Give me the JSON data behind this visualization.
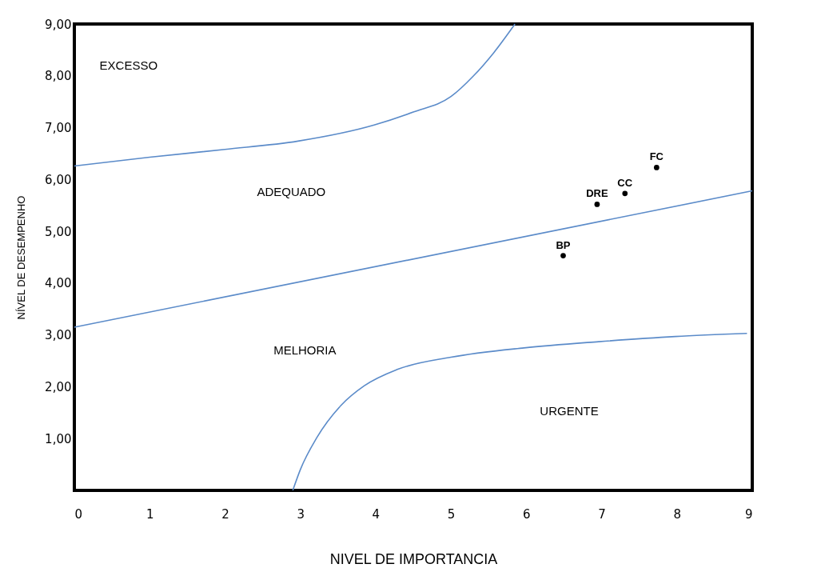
{
  "chart_data": {
    "type": "line",
    "xlabel": "NIVEL DE IMPORTANCIA",
    "ylabel": "NÍVEL DE DESEMPENHO",
    "xlim": [
      0,
      9
    ],
    "xticks": [
      0,
      1,
      2,
      3,
      4,
      5,
      6,
      7,
      8,
      9
    ],
    "ylim": [
      0,
      9
    ],
    "yticks": [
      {
        "value": 1,
        "label": "1,00"
      },
      {
        "value": 2,
        "label": "2,00"
      },
      {
        "value": 3,
        "label": "3,00"
      },
      {
        "value": 4,
        "label": "4,00"
      },
      {
        "value": 5,
        "label": "5,00"
      },
      {
        "value": 6,
        "label": "6,00"
      },
      {
        "value": 7,
        "label": "7,00"
      },
      {
        "value": 8,
        "label": "8,00"
      },
      {
        "value": 9,
        "label": "9,00"
      }
    ],
    "grid": false,
    "legend": false,
    "marker": "none",
    "line_style": "solid",
    "series": [
      {
        "color": "#5b8bc9",
        "x": [
          0,
          1,
          2,
          2.97,
          3.98,
          4.5,
          5,
          5.3,
          5.57,
          5.85
        ],
        "values": [
          6.26,
          6.43,
          6.58,
          6.74,
          7.05,
          7.3,
          7.6,
          8.0,
          8.45,
          9
        ]
      },
      {
        "color": "#5b8bc9",
        "x": [
          0,
          9
        ],
        "values": [
          3.15,
          5.78
        ]
      },
      {
        "color": "#5b8bc9",
        "x": [
          2.9,
          3,
          3.22,
          3.54,
          3.85,
          4.28,
          5,
          5.97,
          6.96,
          7.98,
          8.93
        ],
        "values": [
          0,
          0.4,
          1.02,
          1.64,
          2.02,
          2.33,
          2.57,
          2.75,
          2.87,
          2.97,
          3.03
        ]
      },
      {
        "type": "scatter",
        "marker": "circle",
        "color": "#000000",
        "x": [
          6.49,
          6.94,
          7.31,
          7.73
        ],
        "values": [
          4.53,
          5.52,
          5.73,
          6.23
        ],
        "value_labels": [
          "BP",
          "DRE",
          "CC",
          "FC"
        ]
      }
    ],
    "annotations": [
      "EXCESSO",
      "ADEQUADO",
      "MELHORIA",
      "URGENTE"
    ]
  }
}
